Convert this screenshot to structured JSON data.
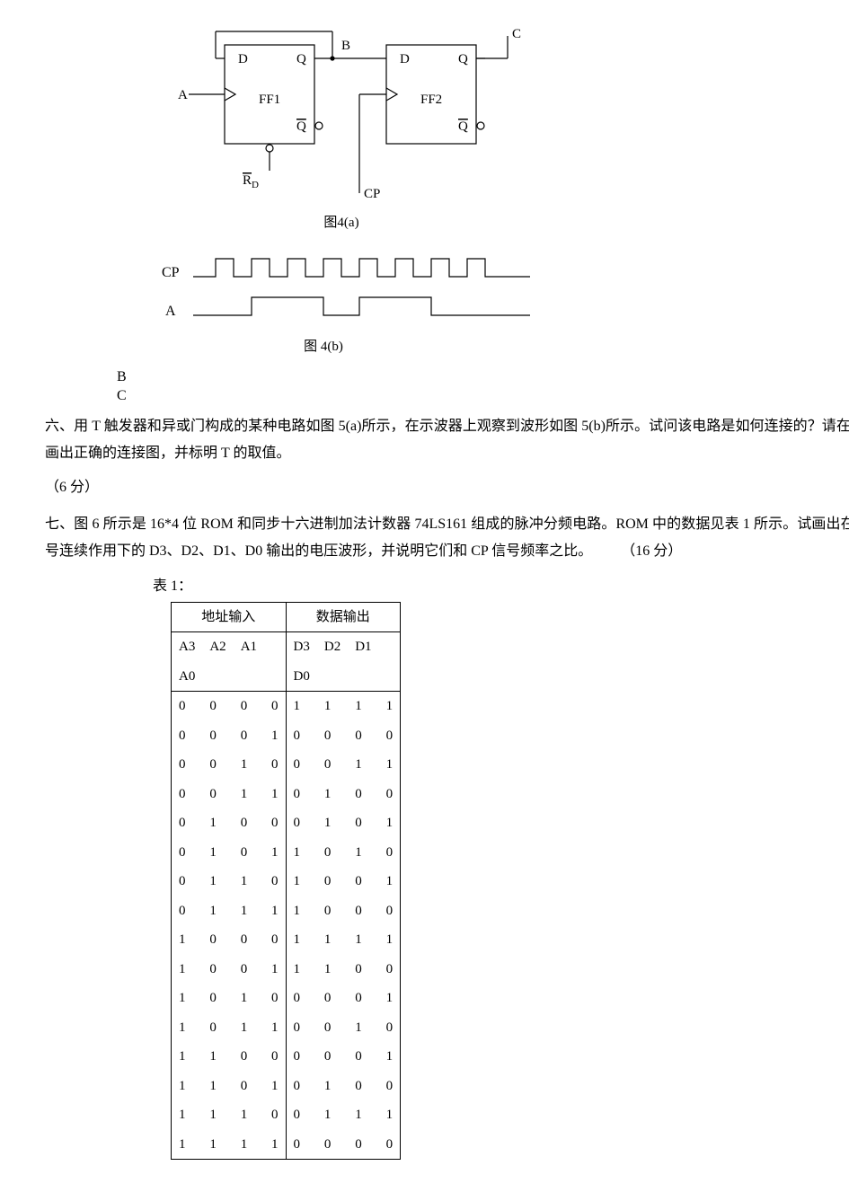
{
  "figure4a": {
    "caption": "图4(a)",
    "labels": {
      "A": "A",
      "B": "B",
      "C": "C",
      "D": "D",
      "Q": "Q",
      "Qbar": "Q",
      "FF1": "FF1",
      "FF2": "FF2",
      "Rd": "R",
      "Rdsub": "D",
      "CP": "CP"
    },
    "stroke": "#000000",
    "stroke_width": 1.2,
    "font_family": "Times New Roman, serif",
    "font_size": 15
  },
  "figure4b": {
    "caption": "图 4(b)",
    "labels": {
      "CP": "CP",
      "A": "A"
    },
    "cp_pulses": 8,
    "a_pattern": [
      0,
      0,
      1,
      1,
      0,
      1,
      1,
      0,
      0
    ],
    "stroke": "#000000",
    "stroke_width": 1.2
  },
  "bc": {
    "B": "B",
    "C": "C"
  },
  "problem6": "六、用 T 触发器和异或门构成的某种电路如图 5(a)所示，在示波器上观察到波形如图 5(b)所示。试问该电路是如何连接的？请在原图上画出正确的连接图，并标明 T 的取值。",
  "problem6_pts": "（6 分）",
  "problem7": "七、图 6 所示是 16*4 位 ROM 和同步十六进制加法计数器 74LS161 组成的脉冲分频电路。ROM 中的数据见表 1 所示。试画出在 CP 信号连续作用下的 D3、D2、D1、D0 输出的电压波形，并说明它们和 CP 信号频率之比。　　　（16 分）",
  "table": {
    "caption": "表 1：",
    "addr_header": "地址输入",
    "data_header": "数据输出",
    "addr_cols_line1": [
      "A3",
      "A2",
      "A1"
    ],
    "addr_cols_line2": "A0",
    "data_cols_line1": [
      "D3",
      "D2",
      "D1"
    ],
    "data_cols_line2": "D0",
    "rows": [
      {
        "a": [
          0,
          0,
          0,
          0
        ],
        "d": [
          1,
          1,
          1,
          1
        ]
      },
      {
        "a": [
          0,
          0,
          0,
          1
        ],
        "d": [
          0,
          0,
          0,
          0
        ]
      },
      {
        "a": [
          0,
          0,
          1,
          0
        ],
        "d": [
          0,
          0,
          1,
          1
        ]
      },
      {
        "a": [
          0,
          0,
          1,
          1
        ],
        "d": [
          0,
          1,
          0,
          0
        ]
      },
      {
        "a": [
          0,
          1,
          0,
          0
        ],
        "d": [
          0,
          1,
          0,
          1
        ]
      },
      {
        "a": [
          0,
          1,
          0,
          1
        ],
        "d": [
          1,
          0,
          1,
          0
        ]
      },
      {
        "a": [
          0,
          1,
          1,
          0
        ],
        "d": [
          1,
          0,
          0,
          1
        ]
      },
      {
        "a": [
          0,
          1,
          1,
          1
        ],
        "d": [
          1,
          0,
          0,
          0
        ]
      },
      {
        "a": [
          1,
          0,
          0,
          0
        ],
        "d": [
          1,
          1,
          1,
          1
        ]
      },
      {
        "a": [
          1,
          0,
          0,
          1
        ],
        "d": [
          1,
          1,
          0,
          0
        ]
      },
      {
        "a": [
          1,
          0,
          1,
          0
        ],
        "d": [
          0,
          0,
          0,
          1
        ]
      },
      {
        "a": [
          1,
          0,
          1,
          1
        ],
        "d": [
          0,
          0,
          1,
          0
        ]
      },
      {
        "a": [
          1,
          1,
          0,
          0
        ],
        "d": [
          0,
          0,
          0,
          1
        ]
      },
      {
        "a": [
          1,
          1,
          0,
          1
        ],
        "d": [
          0,
          1,
          0,
          0
        ]
      },
      {
        "a": [
          1,
          1,
          1,
          0
        ],
        "d": [
          0,
          1,
          1,
          1
        ]
      },
      {
        "a": [
          1,
          1,
          1,
          1
        ],
        "d": [
          0,
          0,
          0,
          0
        ]
      }
    ]
  }
}
